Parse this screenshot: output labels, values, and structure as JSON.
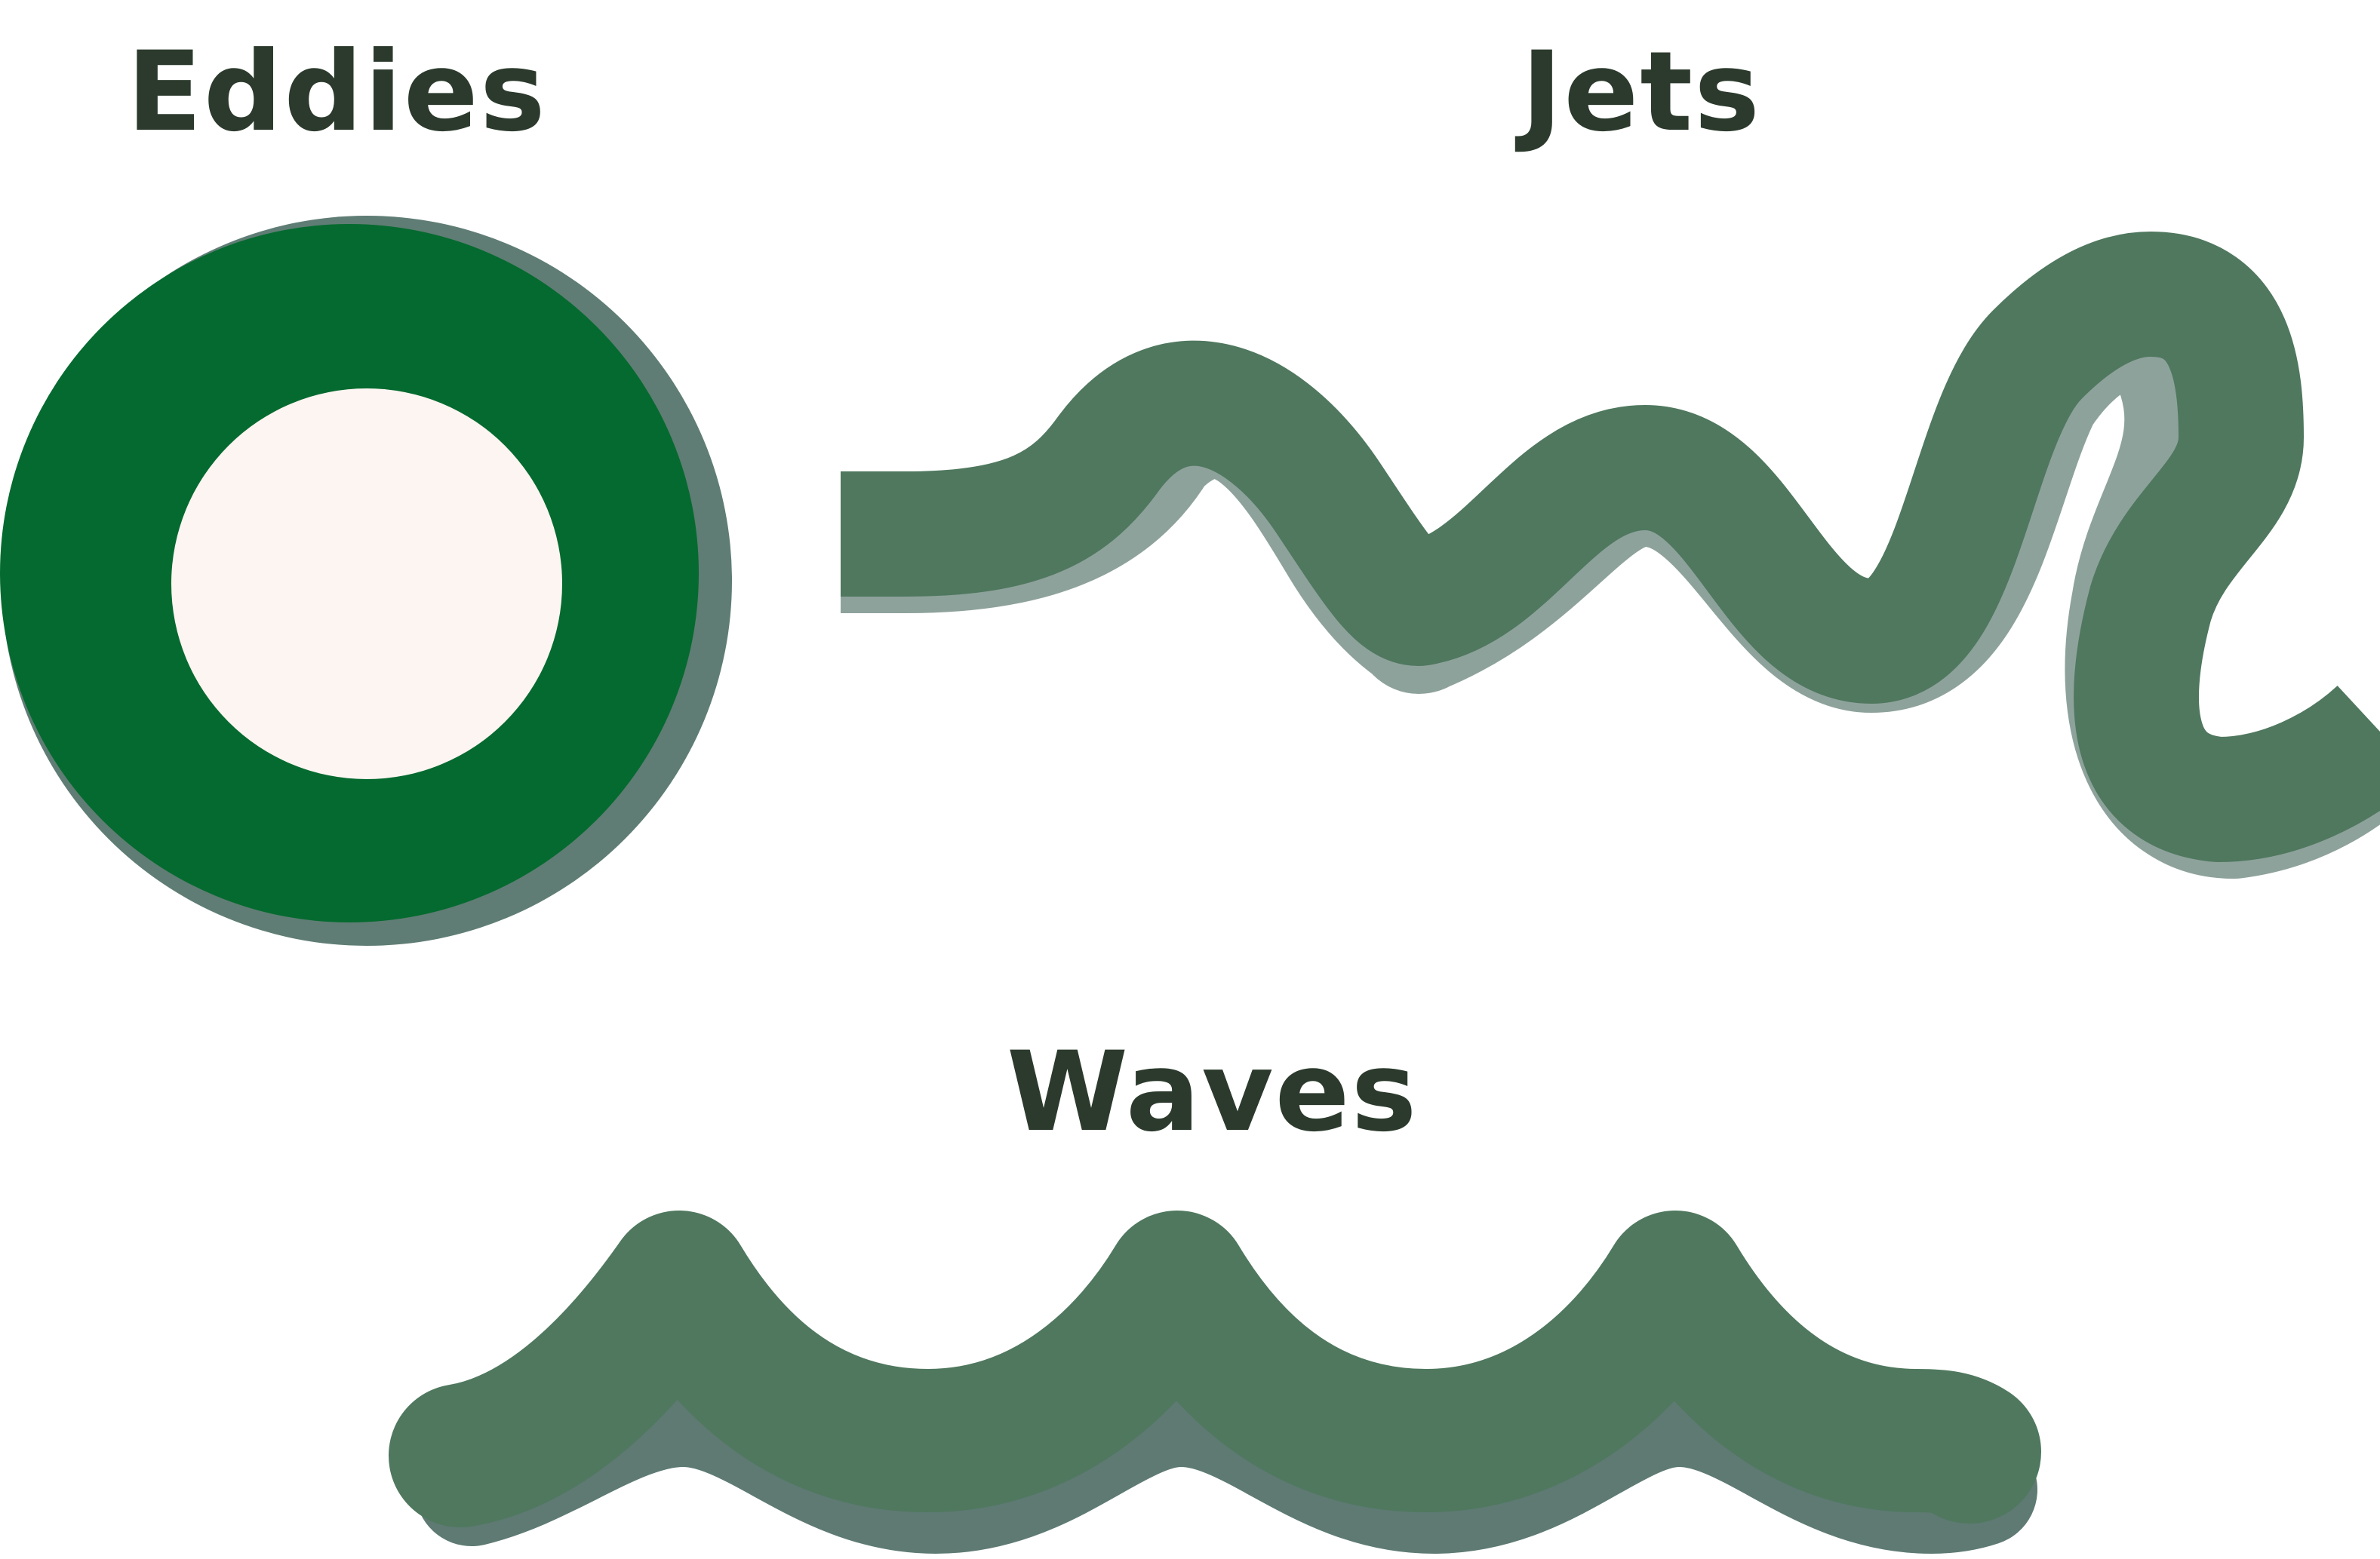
{
  "labels": {
    "eddies": "Eddies",
    "jets": "Jets",
    "waves": "Waves"
  },
  "colors": {
    "background": "#ffffff",
    "label_text": "#2b3a2c",
    "eddy_ring": "#056a2f",
    "eddy_shadow": "#5f7d74",
    "eddy_center": "#fdf5f2",
    "jet_band": "#4f785e",
    "jet_shadow": "#8ea29c",
    "wave_band": "#4f785e",
    "wave_shadow": "#5e7a73"
  }
}
